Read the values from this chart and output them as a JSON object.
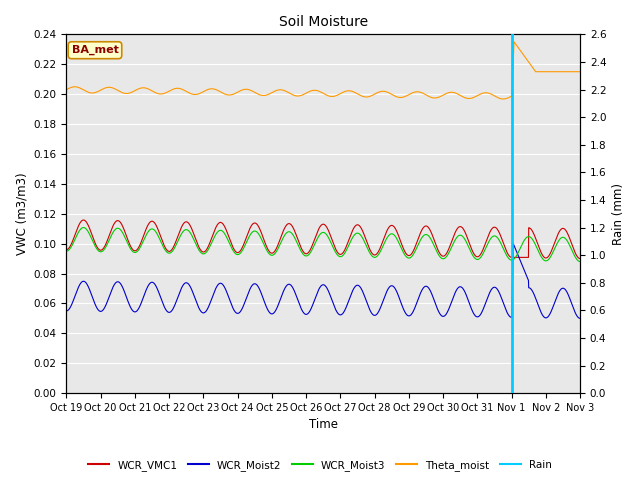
{
  "title": "Soil Moisture",
  "ylabel_left": "VWC (m3/m3)",
  "ylabel_right": "Rain (mm)",
  "xlabel": "Time",
  "annotation": "BA_met",
  "ylim_left": [
    0.0,
    0.24
  ],
  "ylim_right": [
    0.0,
    2.6
  ],
  "yticks_left": [
    0.0,
    0.02,
    0.04,
    0.06,
    0.08,
    0.1,
    0.12,
    0.14,
    0.16,
    0.18,
    0.2,
    0.22,
    0.24
  ],
  "yticks_right": [
    0.0,
    0.2,
    0.4,
    0.6,
    0.8,
    1.0,
    1.2,
    1.4,
    1.6,
    1.8,
    2.0,
    2.2,
    2.4,
    2.6
  ],
  "xtick_labels": [
    "Oct 19",
    "Oct 20",
    "Oct 21",
    "Oct 22",
    "Oct 23",
    "Oct 24",
    "Oct 25",
    "Oct 26",
    "Oct 27",
    "Oct 28",
    "Oct 29",
    "Oct 30",
    "Oct 31",
    "Nov 1",
    "Nov 2",
    "Nov 3"
  ],
  "colors": {
    "WCR_VMC1": "#cc0000",
    "WCR_Moist2": "#0000cc",
    "WCR_Moist3": "#00cc00",
    "Theta_moist": "#ff9900",
    "Rain": "#00ccff",
    "background": "#e8e8e8"
  },
  "legend_labels": [
    "WCR_VMC1",
    "WCR_Moist2",
    "WCR_Moist3",
    "Theta_moist",
    "Rain"
  ],
  "n_points": 2000,
  "days": 15
}
